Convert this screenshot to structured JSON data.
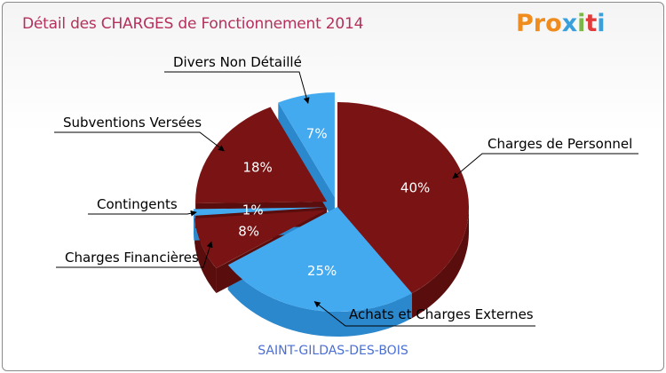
{
  "title": "Détail des CHARGES de Fonctionnement 2014",
  "brand": {
    "letters": [
      "P",
      "r",
      "o",
      "x",
      "i",
      "t",
      "i"
    ],
    "colors": [
      "#f08c1e",
      "#f08c1e",
      "#f08c1e",
      "#3aa0dc",
      "#7ab648",
      "#e23b3b",
      "#3aa0dc"
    ]
  },
  "commune": "SAINT-GILDAS-DES-BOIS",
  "colors": {
    "dark_red": "#7a1414",
    "dark_red_side": "#5a0d0d",
    "blue": "#44aaf0",
    "blue_side": "#2b88cc",
    "title": "#b5305a"
  },
  "chart_data": {
    "type": "pie",
    "title": "Détail des CHARGES de Fonctionnement 2014",
    "slices": [
      {
        "name": "Charges de Personnel",
        "label": "40%",
        "value": 40,
        "color": "dark_red",
        "exploded": false
      },
      {
        "name": "Achats et Charges Externes",
        "label": "25%",
        "value": 25,
        "color": "blue",
        "exploded": false
      },
      {
        "name": "Charges Financières",
        "label": "8%",
        "value": 8,
        "color": "dark_red",
        "exploded": true
      },
      {
        "name": "Contingents",
        "label": "1%",
        "value": 1,
        "color": "blue",
        "exploded": true
      },
      {
        "name": "Subventions Versées",
        "label": "18%",
        "value": 18,
        "color": "dark_red",
        "exploded": true
      },
      {
        "name": "Divers Non Détaillé",
        "label": "7%",
        "value": 7,
        "color": "blue",
        "exploded": true
      }
    ]
  }
}
